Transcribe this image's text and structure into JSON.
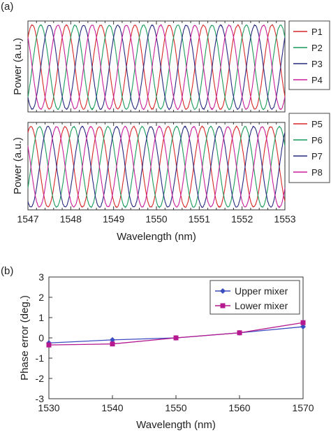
{
  "chart_data": [
    {
      "panel_label": "(a)",
      "type": "line",
      "xlabel": "Wavelength (nm)",
      "ylabel": "Power (a.u.)",
      "xlim": [
        1547,
        1553
      ],
      "x_ticks": [
        "1547",
        "1548",
        "1549",
        "1550",
        "1551",
        "1552",
        "1553"
      ],
      "grid": false,
      "legend_position": "right",
      "subplots": [
        {
          "legend": [
            "P1",
            "P2",
            "P3",
            "P4"
          ],
          "series": [
            {
              "name": "P1",
              "color": "#d62728",
              "period_nm": 0.8,
              "peak_wavelength_nm": 1547.1
            },
            {
              "name": "P2",
              "color": "#1a9a5a",
              "period_nm": 0.8,
              "peak_wavelength_nm": 1547.3
            },
            {
              "name": "P3",
              "color": "#27287f",
              "period_nm": 0.8,
              "peak_wavelength_nm": 1547.5
            },
            {
              "name": "P4",
              "color": "#c81e9a",
              "period_nm": 0.8,
              "peak_wavelength_nm": 1547.7
            }
          ]
        },
        {
          "legend": [
            "P5",
            "P6",
            "P7",
            "P8"
          ],
          "series": [
            {
              "name": "P5",
              "color": "#d62728",
              "period_nm": 0.8,
              "peak_wavelength_nm": 1547.07
            },
            {
              "name": "P6",
              "color": "#1a9a5a",
              "period_nm": 0.8,
              "peak_wavelength_nm": 1547.27
            },
            {
              "name": "P7",
              "color": "#27287f",
              "period_nm": 0.8,
              "peak_wavelength_nm": 1547.47
            },
            {
              "name": "P8",
              "color": "#c81e9a",
              "period_nm": 0.8,
              "peak_wavelength_nm": 1547.67
            }
          ]
        }
      ]
    },
    {
      "panel_label": "(b)",
      "type": "line",
      "xlabel": "Wavelength (nm)",
      "ylabel": "Phase error (deg.)",
      "xlim": [
        1530,
        1570
      ],
      "ylim": [
        -3,
        3
      ],
      "x_ticks": [
        "1530",
        "1540",
        "1550",
        "1560",
        "1570"
      ],
      "y_ticks": [
        "-3",
        "-2",
        "-1",
        "0",
        "1",
        "2",
        "3"
      ],
      "grid": false,
      "legend_position": "top-right",
      "x": [
        1530,
        1540,
        1550,
        1560,
        1570
      ],
      "series": [
        {
          "name": "Upper mixer",
          "color": "#3b4cc0",
          "marker": "diamond",
          "values": [
            -0.25,
            -0.1,
            0.0,
            0.25,
            0.55
          ]
        },
        {
          "name": "Lower mixer",
          "color": "#b5188f",
          "marker": "square",
          "values": [
            -0.35,
            -0.3,
            0.0,
            0.25,
            0.75
          ]
        }
      ]
    }
  ]
}
